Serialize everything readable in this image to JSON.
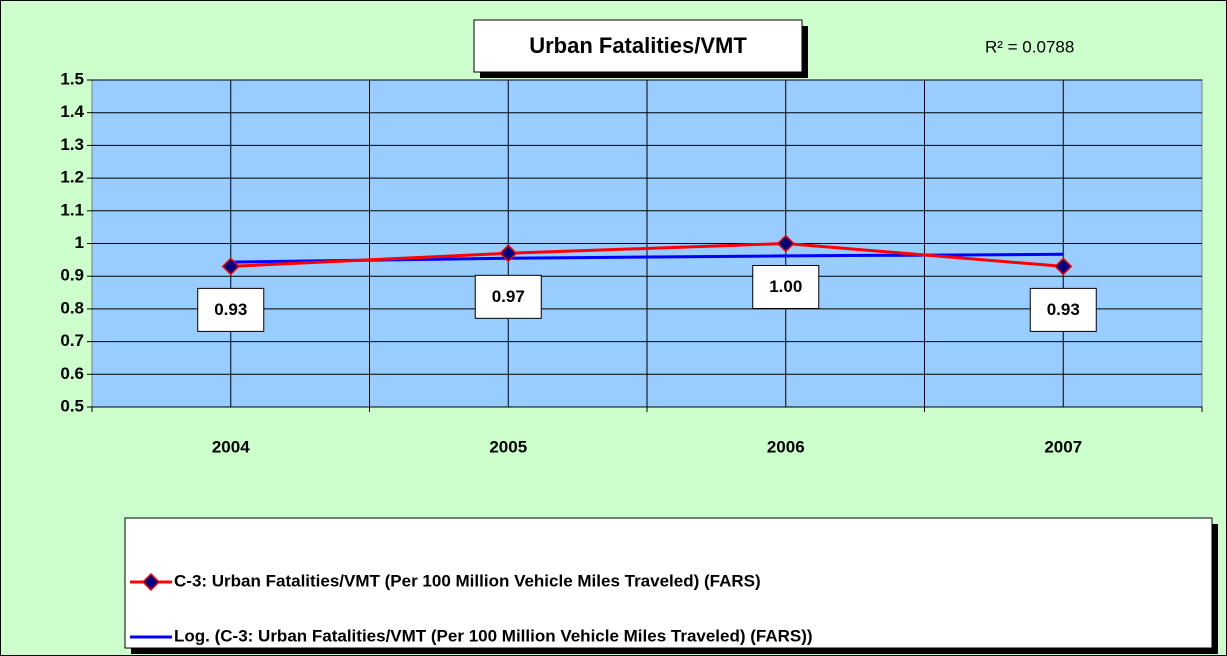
{
  "chart_data": {
    "type": "line",
    "title": "Urban Fatalities/VMT",
    "annotation": "R² = 0.0788",
    "categories": [
      "2004",
      "2005",
      "2006",
      "2007"
    ],
    "series": [
      {
        "name": "C-3:  Urban Fatalities/VMT (Per 100 Million Vehicle Miles Traveled) (FARS)",
        "color": "#ff0000",
        "marker_color": "#000080",
        "values": [
          0.93,
          0.97,
          1.0,
          0.93
        ],
        "value_labels": [
          "0.93",
          "0.97",
          "1.00",
          "0.93"
        ]
      },
      {
        "name": "Log. (C-3:  Urban Fatalities/VMT (Per 100 Million Vehicle Miles Traveled) (FARS))",
        "color": "#0000ff",
        "values": [
          0.943,
          0.955,
          0.962,
          0.967
        ]
      }
    ],
    "ylim": [
      0.5,
      1.5
    ],
    "yticks": [
      0.5,
      0.6,
      0.7,
      0.8,
      0.9,
      1,
      1.1,
      1.2,
      1.3,
      1.4,
      1.5
    ],
    "grid": true,
    "plot_color": "#99ccff",
    "background": "#ccffcc"
  }
}
